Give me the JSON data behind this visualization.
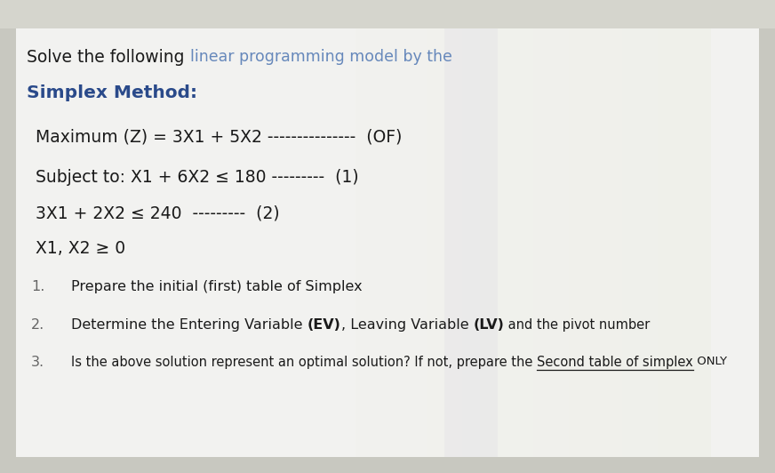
{
  "bg_outer": "#c8c8c0",
  "bg_panel": "#f0f0ee",
  "text_dark": "#1a1a1a",
  "text_blue_light": "#6688bb",
  "text_blue_bold": "#2a4a8a",
  "text_gray_num": "#666666",
  "line1_part1": "Solve the following ",
  "line1_part2": "linear programming model by the",
  "line2": "Simplex Method:",
  "line3": "Maximum (Z) = 3X1 + 5X2 ---------------  (OF)",
  "line4": "Subject to: X1 + 6X2 ≤ 180 ---------  (1)",
  "line5": "3X1 + 2X2 ≤ 240  ---------  (2)",
  "line6": "X1, X2 ≥ 0",
  "item1_num": "1.",
  "item1_text": "Prepare the initial (first) table of Simplex",
  "item2_num": "2.",
  "item2_pre": "Determine the Entering Variable ",
  "item2_ev": "(EV)",
  "item2_comma": ", Leaving Variable ",
  "item2_lv": "(LV)",
  "item2_post": " and the pivot number",
  "item3_num": "3.",
  "item3_pre": "Is the above solution represent an optimal solution? If not, prepare the ",
  "item3_ul": "Second table of simplex",
  "item3_post": " ONLY",
  "fs_main": 13.5,
  "fs_simplex": 14.5,
  "fs_body": 13.5,
  "fs_item": 11.5,
  "fs_item_small": 10.5
}
